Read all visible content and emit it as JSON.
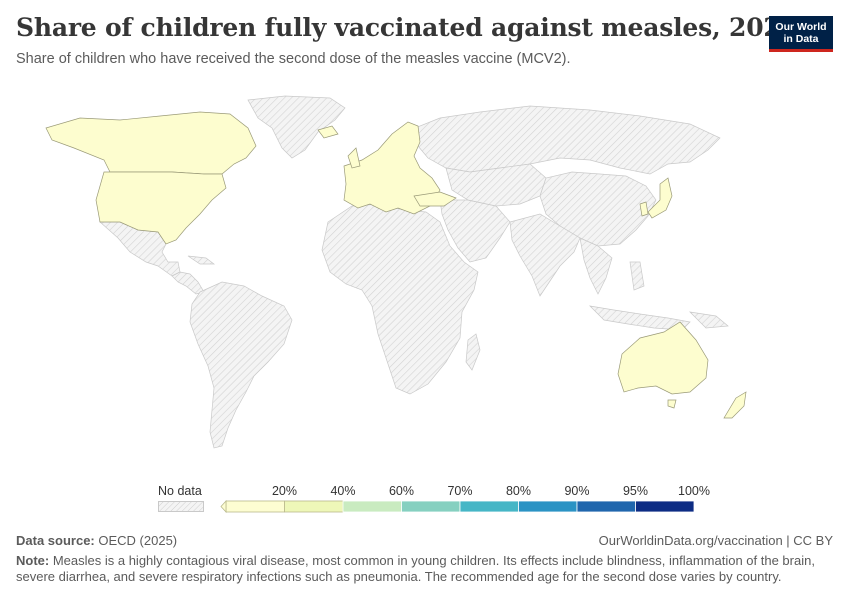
{
  "header": {
    "title": "Share of children fully vaccinated against measles, 2026",
    "subtitle": "Share of children who have received the second dose of the measles vaccine (MCV2)."
  },
  "logo": {
    "line1": "Our World",
    "line2": "in Data"
  },
  "map": {
    "colors": {
      "data": "#fdfdcf",
      "stroke_data": "#9a9a78",
      "nodata_fill": "#f4f4f4",
      "nodata_hatch": "#d6d6d6",
      "border": "#c9c9c9"
    },
    "countries_with_data": [
      "United States",
      "Canada",
      "Europe (OECD members)",
      "Turkey",
      "Israel",
      "Japan",
      "South Korea",
      "Australia",
      "New Zealand"
    ]
  },
  "legend": {
    "no_data_label": "No data",
    "bins": [
      {
        "label": "",
        "color": "#fdfdd2"
      },
      {
        "label": "20%",
        "color": "#eef7b8"
      },
      {
        "label": "40%",
        "color": "#c9ebc0"
      },
      {
        "label": "60%",
        "color": "#86d0c0"
      },
      {
        "label": "70%",
        "color": "#46b6c6"
      },
      {
        "label": "80%",
        "color": "#2b93c4"
      },
      {
        "label": "90%",
        "color": "#2066ad"
      },
      {
        "label": "95%",
        "color": "#0d2c84"
      }
    ],
    "max_label": "100%"
  },
  "footer": {
    "source_label": "Data source:",
    "source_value": "OECD (2025)",
    "link": "OurWorldinData.org/vaccination | CC BY",
    "note_label": "Note:",
    "note_text": "Measles is a highly contagious viral disease, most common in young children. Its effects include blindness, inflammation of the brain, severe diarrhea, and severe respiratory infections such as pneumonia. The recommended age for the second dose varies by country."
  }
}
